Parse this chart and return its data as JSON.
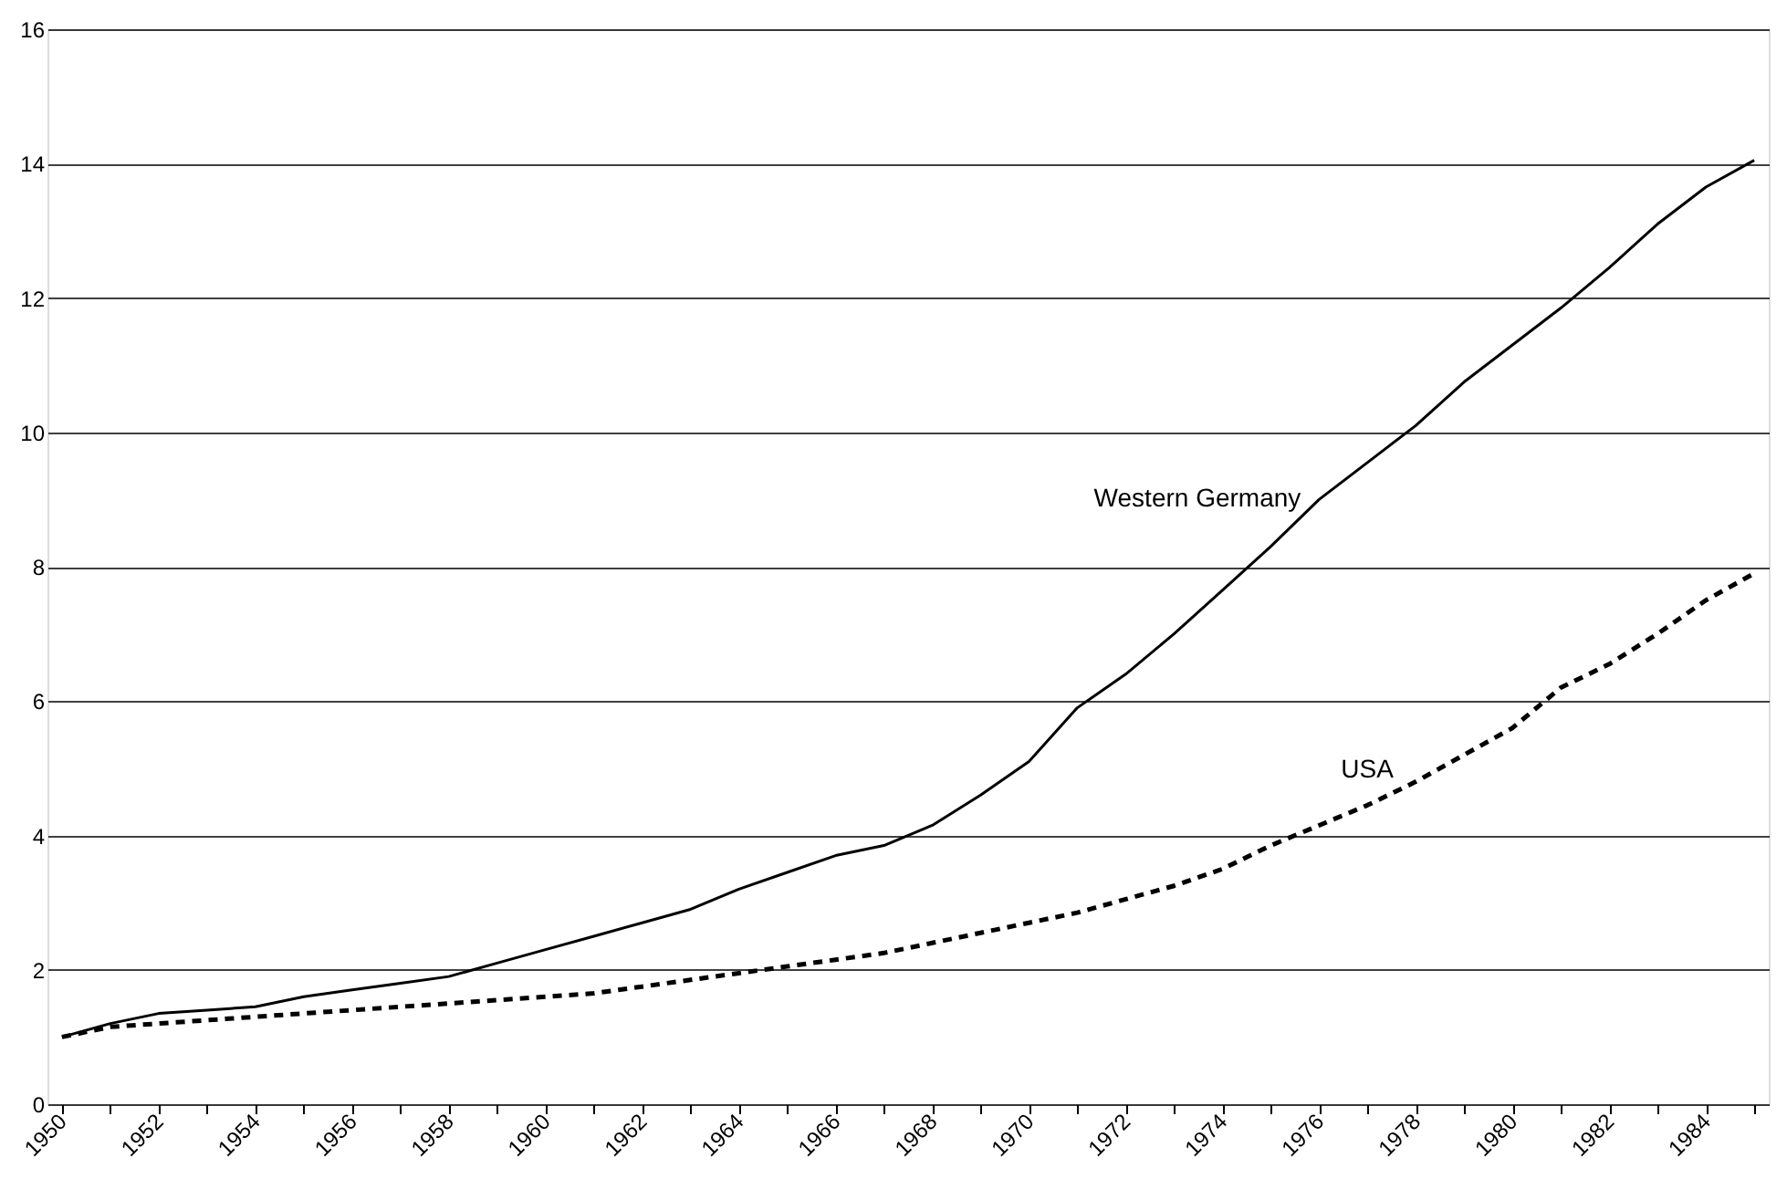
{
  "chart_data": {
    "type": "line",
    "categories": [
      "1950",
      null,
      "1952",
      null,
      "1954",
      null,
      "1956",
      null,
      "1958",
      null,
      "1960",
      null,
      "1962",
      null,
      "1964",
      null,
      "1966",
      null,
      "1968",
      null,
      "1970",
      null,
      "1972",
      null,
      "1974",
      null,
      "1976",
      null,
      "1978",
      null,
      "1980",
      null,
      "1982",
      null,
      "1984",
      null
    ],
    "series": [
      {
        "name": "Western Germany",
        "color": "#000000",
        "line_style": "solid",
        "values": [
          1.0,
          1.2,
          1.35,
          1.4,
          1.45,
          1.6,
          1.7,
          1.8,
          1.9,
          2.1,
          2.3,
          2.5,
          2.7,
          2.9,
          3.2,
          3.45,
          3.7,
          3.85,
          4.15,
          4.6,
          5.1,
          5.9,
          6.4,
          7.0,
          7.65,
          8.3,
          9.0,
          9.55,
          10.1,
          10.75,
          11.3,
          11.85,
          12.45,
          13.1,
          13.65,
          14.05
        ]
      },
      {
        "name": "USA",
        "color": "#000000",
        "line_style": "dashed",
        "values": [
          1.0,
          1.15,
          1.2,
          1.25,
          1.3,
          1.35,
          1.4,
          1.45,
          1.5,
          1.55,
          1.6,
          1.65,
          1.75,
          1.85,
          1.95,
          2.05,
          2.15,
          2.25,
          2.4,
          2.55,
          2.7,
          2.85,
          3.05,
          3.25,
          3.5,
          3.85,
          4.15,
          4.45,
          4.8,
          5.2,
          5.6,
          6.2,
          6.55,
          7.0,
          7.5,
          7.9
        ]
      }
    ],
    "ylim": [
      0,
      16
    ],
    "yticks": [
      0,
      2,
      4,
      6,
      8,
      10,
      12,
      14,
      16
    ],
    "grid": "y",
    "marker": "none"
  }
}
